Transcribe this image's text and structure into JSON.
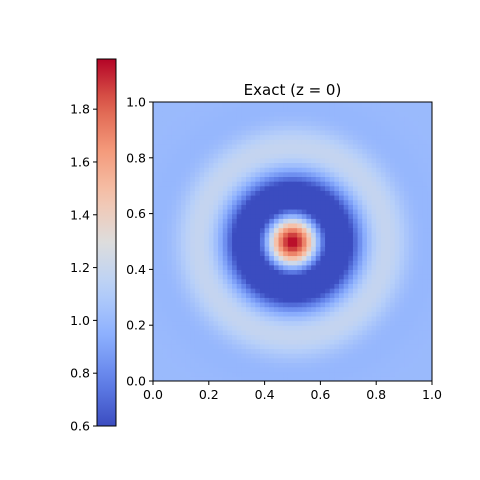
{
  "chart_data": {
    "type": "heatmap",
    "title": "Exact (z = 0)",
    "xlabel": "",
    "ylabel": "",
    "xlim": [
      0,
      1
    ],
    "ylim": [
      0,
      1
    ],
    "x_ticks": [
      "0.0",
      "0.2",
      "0.4",
      "0.6",
      "0.8",
      "1.0"
    ],
    "y_ticks": [
      "0.0",
      "0.2",
      "0.4",
      "0.6",
      "0.8",
      "1.0"
    ],
    "grid": false,
    "colormap": "coolwarm",
    "field": {
      "description_of_values": "radially symmetric ring pattern centered at (0.5, 0.5)",
      "center": [
        0.5,
        0.5
      ],
      "background_value": 1.0,
      "peak_value": 1.99,
      "min_value": 0.6,
      "resolution": 60
    },
    "colorbar": {
      "range": [
        0.6,
        1.99
      ],
      "ticks": [
        "0.6",
        "0.8",
        "1.0",
        "1.2",
        "1.4",
        "1.6",
        "1.8"
      ],
      "tick_values": [
        0.6,
        0.8,
        1.0,
        1.2,
        1.4,
        1.6,
        1.8
      ]
    }
  }
}
